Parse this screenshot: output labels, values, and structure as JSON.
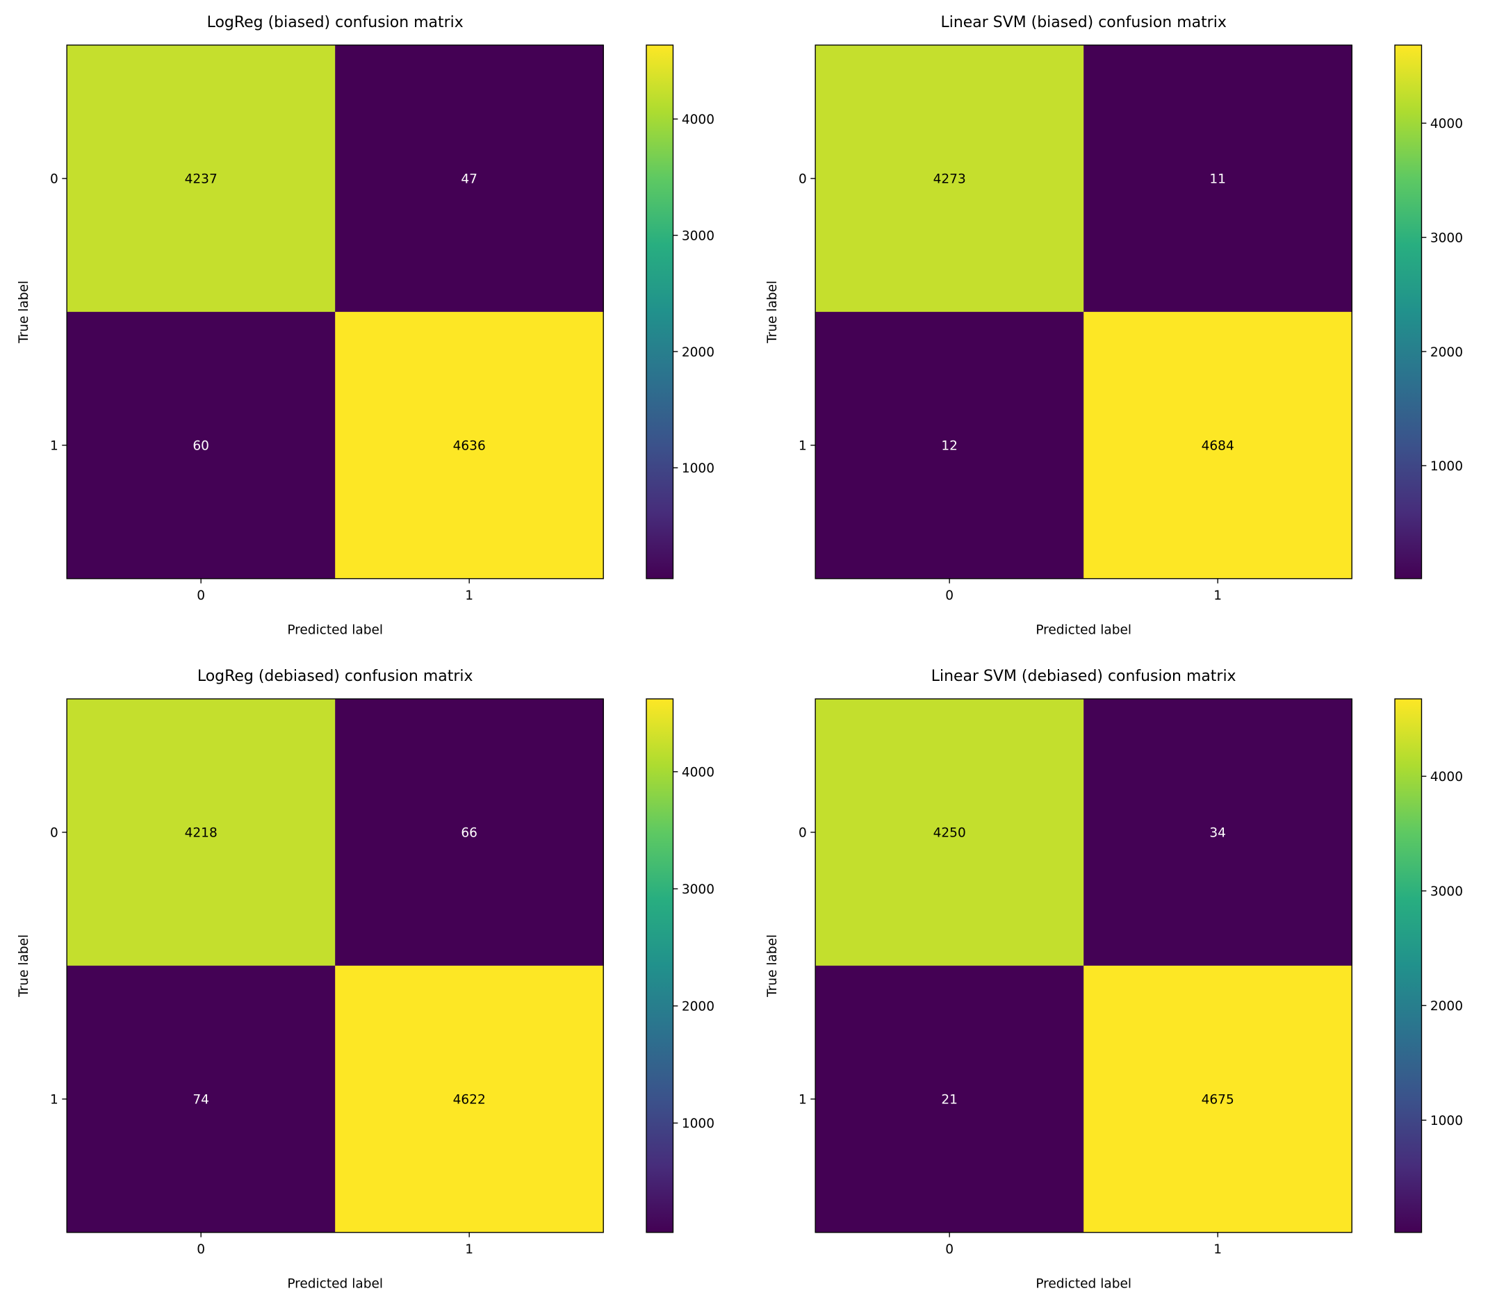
{
  "chart_data": [
    {
      "type": "heatmap",
      "title": "LogReg (biased) confusion matrix",
      "xlabel": "Predicted label",
      "ylabel": "True label",
      "x_ticks": [
        "0",
        "1"
      ],
      "y_ticks": [
        "0",
        "1"
      ],
      "matrix": [
        [
          4237,
          47
        ],
        [
          60,
          4636
        ]
      ],
      "colormap": "viridis",
      "colorbar_ticks": [
        "1000",
        "2000",
        "3000",
        "4000"
      ]
    },
    {
      "type": "heatmap",
      "title": "Linear SVM (biased) confusion matrix",
      "xlabel": "Predicted label",
      "ylabel": "True label",
      "x_ticks": [
        "0",
        "1"
      ],
      "y_ticks": [
        "0",
        "1"
      ],
      "matrix": [
        [
          4273,
          11
        ],
        [
          12,
          4684
        ]
      ],
      "colormap": "viridis",
      "colorbar_ticks": [
        "1000",
        "2000",
        "3000",
        "4000"
      ]
    },
    {
      "type": "heatmap",
      "title": "LogReg (debiased) confusion matrix",
      "xlabel": "Predicted label",
      "ylabel": "True label",
      "x_ticks": [
        "0",
        "1"
      ],
      "y_ticks": [
        "0",
        "1"
      ],
      "matrix": [
        [
          4218,
          66
        ],
        [
          74,
          4622
        ]
      ],
      "colormap": "viridis",
      "colorbar_ticks": [
        "1000",
        "2000",
        "3000",
        "4000"
      ]
    },
    {
      "type": "heatmap",
      "title": "Linear SVM (debiased) confusion matrix",
      "xlabel": "Predicted label",
      "ylabel": "True label",
      "x_ticks": [
        "0",
        "1"
      ],
      "y_ticks": [
        "0",
        "1"
      ],
      "matrix": [
        [
          4250,
          34
        ],
        [
          21,
          4675
        ]
      ],
      "colormap": "viridis",
      "colorbar_ticks": [
        "1000",
        "2000",
        "3000",
        "4000"
      ]
    }
  ]
}
